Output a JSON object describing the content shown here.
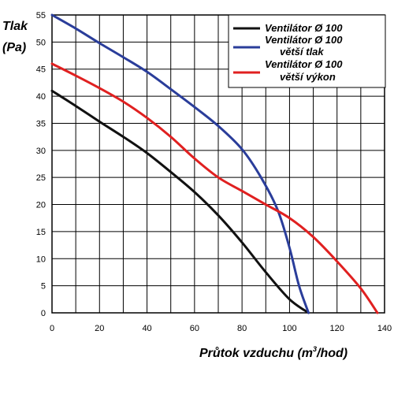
{
  "chart_data": {
    "type": "line",
    "xlabel_main": "Průtok vzduchu (m",
    "xlabel_sup": "3",
    "xlabel_end": "/hod)",
    "ylabel_line1": "Tlak",
    "ylabel_line2": "(Pa)",
    "xlim": [
      0,
      140
    ],
    "ylim": [
      0,
      55
    ],
    "xticks": [
      0,
      20,
      40,
      60,
      80,
      100,
      120,
      140
    ],
    "yticks": [
      0,
      5,
      10,
      15,
      20,
      25,
      30,
      35,
      40,
      45,
      50,
      55
    ],
    "grid": true,
    "legend_position": "top-right",
    "series": [
      {
        "name_lines": [
          "Ventilátor Ø 100"
        ],
        "color": "#111111",
        "points": [
          [
            0,
            41
          ],
          [
            10,
            38.2
          ],
          [
            20,
            35.3
          ],
          [
            30,
            32.5
          ],
          [
            40,
            29.5
          ],
          [
            50,
            26
          ],
          [
            60,
            22.3
          ],
          [
            70,
            18
          ],
          [
            80,
            13
          ],
          [
            90,
            7.5
          ],
          [
            100,
            2.5
          ],
          [
            108,
            0
          ]
        ]
      },
      {
        "name_lines": [
          "Ventilátor Ø 100",
          "větší tlak"
        ],
        "color": "#2a3d9a",
        "points": [
          [
            0,
            55
          ],
          [
            10,
            52.5
          ],
          [
            20,
            49.8
          ],
          [
            30,
            47.2
          ],
          [
            40,
            44.5
          ],
          [
            50,
            41.3
          ],
          [
            60,
            38
          ],
          [
            70,
            34.5
          ],
          [
            80,
            30.2
          ],
          [
            88,
            25
          ],
          [
            95,
            19
          ],
          [
            100,
            12
          ],
          [
            104,
            5
          ],
          [
            108,
            0
          ]
        ]
      },
      {
        "name_lines": [
          "Ventilátor Ø 100",
          "větší výkon"
        ],
        "color": "#e02020",
        "points": [
          [
            0,
            46
          ],
          [
            10,
            43.8
          ],
          [
            20,
            41.5
          ],
          [
            30,
            39
          ],
          [
            40,
            36
          ],
          [
            50,
            32.5
          ],
          [
            60,
            28.5
          ],
          [
            70,
            25
          ],
          [
            80,
            22.5
          ],
          [
            90,
            20
          ],
          [
            100,
            17.5
          ],
          [
            110,
            14
          ],
          [
            120,
            9.5
          ],
          [
            130,
            4.5
          ],
          [
            137,
            0
          ]
        ]
      }
    ]
  }
}
